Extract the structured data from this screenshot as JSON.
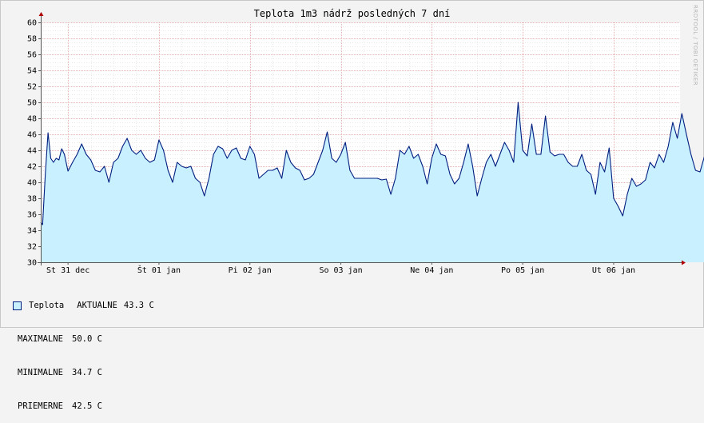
{
  "chart_data": {
    "type": "area",
    "title": "Teplota 1m3 nádrž posledných 7 dní",
    "watermark": "RRDTOOL / TOBI OETIKER",
    "ylim": [
      30,
      60
    ],
    "yticks": [
      30,
      32,
      34,
      36,
      38,
      40,
      42,
      44,
      46,
      48,
      50,
      52,
      54,
      56,
      58,
      60
    ],
    "xlim": [
      0,
      7.05
    ],
    "xticks": [
      {
        "x": 0,
        "label": "St 31 dec"
      },
      {
        "x": 1,
        "label": "Št 01 jan"
      },
      {
        "x": 2,
        "label": "Pi 02 jan"
      },
      {
        "x": 3,
        "label": "So 03 jan"
      },
      {
        "x": 4,
        "label": "Ne 04 jan"
      },
      {
        "x": 5,
        "label": "Po 05 jan"
      },
      {
        "x": 6,
        "label": "Ut 06 jan"
      }
    ],
    "grid": true,
    "colors": {
      "fill": "#c8f0ff",
      "line": "#001e80",
      "grid_major": "#e0a0a0",
      "grid_minor": "#d6d6d6",
      "axis": "#555555",
      "arrow": "#b00000"
    },
    "series": [
      {
        "name": "Teplota",
        "x": [
          -0.3,
          -0.28,
          -0.25,
          -0.22,
          -0.19,
          -0.16,
          -0.13,
          -0.1,
          -0.07,
          -0.04,
          0,
          0.05,
          0.1,
          0.15,
          0.2,
          0.25,
          0.3,
          0.35,
          0.4,
          0.45,
          0.5,
          0.55,
          0.6,
          0.65,
          0.7,
          0.75,
          0.8,
          0.85,
          0.9,
          0.95,
          1,
          1.05,
          1.1,
          1.15,
          1.2,
          1.25,
          1.3,
          1.35,
          1.4,
          1.45,
          1.5,
          1.55,
          1.6,
          1.65,
          1.7,
          1.75,
          1.8,
          1.85,
          1.9,
          1.95,
          2,
          2.05,
          2.1,
          2.15,
          2.2,
          2.25,
          2.3,
          2.35,
          2.4,
          2.45,
          2.5,
          2.55,
          2.6,
          2.65,
          2.7,
          2.75,
          2.8,
          2.85,
          2.9,
          2.95,
          3,
          3.05,
          3.1,
          3.15,
          3.2,
          3.25,
          3.3,
          3.35,
          3.4,
          3.45,
          3.5,
          3.55,
          3.6,
          3.65,
          3.7,
          3.75,
          3.8,
          3.85,
          3.9,
          3.95,
          4,
          4.05,
          4.1,
          4.15,
          4.2,
          4.25,
          4.3,
          4.35,
          4.4,
          4.45,
          4.5,
          4.55,
          4.6,
          4.65,
          4.7,
          4.75,
          4.8,
          4.85,
          4.9,
          4.95,
          5,
          5.05,
          5.1,
          5.15,
          5.2,
          5.25,
          5.3,
          5.35,
          5.4,
          5.45,
          5.5,
          5.55,
          5.6,
          5.65,
          5.7,
          5.75,
          5.8,
          5.85,
          5.9,
          5.95,
          6,
          6.05,
          6.1,
          6.15,
          6.2,
          6.25,
          6.3,
          6.35,
          6.4,
          6.45,
          6.5,
          6.55,
          6.6,
          6.65,
          6.7,
          6.75,
          6.8,
          6.85,
          6.9,
          6.95,
          7.0
        ],
        "values": [
          35.0,
          34.7,
          41.0,
          46.2,
          43.0,
          42.5,
          43.0,
          42.8,
          44.2,
          43.5,
          41.4,
          42.5,
          43.5,
          44.8,
          43.5,
          42.8,
          41.5,
          41.3,
          42.0,
          40.0,
          42.5,
          43.0,
          44.5,
          45.5,
          44.0,
          43.5,
          44.0,
          43.0,
          42.5,
          42.8,
          45.3,
          44.0,
          41.5,
          40.0,
          42.5,
          42.0,
          41.8,
          42.0,
          40.5,
          40.0,
          38.3,
          40.5,
          43.5,
          44.5,
          44.2,
          43.0,
          44.0,
          44.3,
          43.0,
          42.8,
          44.5,
          43.5,
          40.5,
          41.0,
          41.5,
          41.5,
          41.8,
          40.5,
          44.0,
          42.5,
          41.8,
          41.5,
          40.3,
          40.5,
          41.0,
          42.5,
          44.0,
          46.3,
          43.0,
          42.5,
          43.5,
          45.0,
          41.5,
          40.5,
          40.5,
          40.5,
          40.5,
          40.5,
          40.5,
          40.3,
          40.4,
          38.5,
          40.5,
          44.0,
          43.5,
          44.5,
          43.0,
          43.5,
          42.0,
          39.8,
          43.0,
          44.8,
          43.5,
          43.3,
          41.0,
          39.8,
          40.5,
          42.5,
          44.8,
          42.0,
          38.3,
          40.5,
          42.5,
          43.5,
          42.0,
          43.5,
          45.0,
          44.0,
          42.5,
          50.0,
          44.0,
          43.3,
          47.3,
          43.5,
          43.5,
          48.3,
          43.8,
          43.3,
          43.5,
          43.5,
          42.5,
          42.0,
          42.0,
          43.5,
          41.5,
          41.0,
          38.5,
          42.5,
          41.3,
          44.3,
          38.0,
          37.0,
          35.8,
          38.5,
          40.5,
          39.5,
          39.8,
          40.3,
          42.5,
          41.8,
          43.5,
          42.5,
          44.5,
          47.5,
          45.5,
          48.6,
          46.0,
          43.5,
          41.5,
          41.3,
          43.3
        ]
      }
    ],
    "legend": {
      "series_name": "Teplota",
      "rows": [
        {
          "key": "AKTUALNE",
          "value": "43.3 C"
        },
        {
          "key": "MAXIMALNE",
          "value": "50.0 C"
        },
        {
          "key": "MINIMALNE",
          "value": "34.7 C"
        },
        {
          "key": "PRIEMERNE",
          "value": "42.5 C"
        }
      ]
    }
  }
}
